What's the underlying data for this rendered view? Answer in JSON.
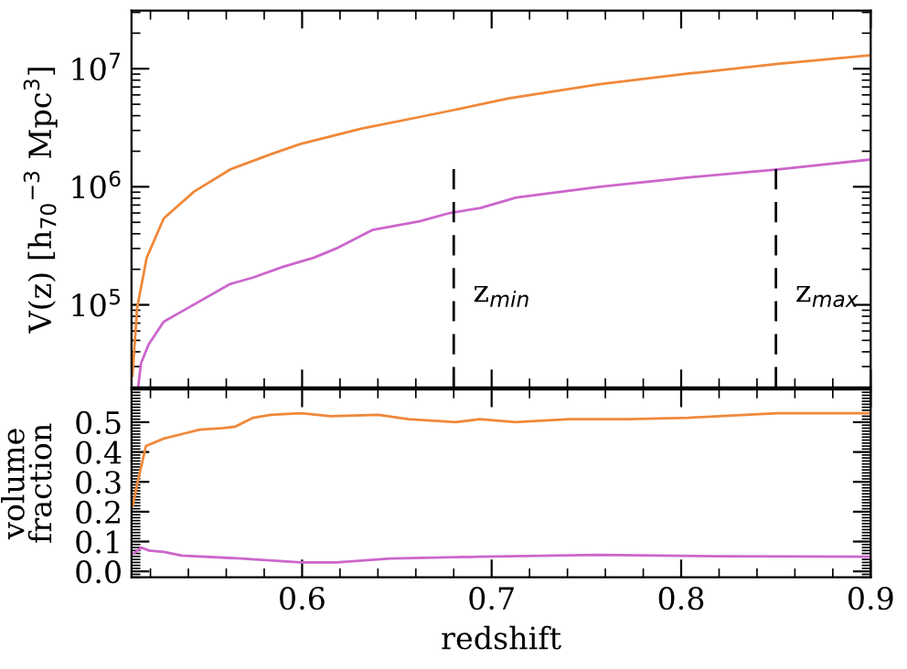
{
  "chart_data": [
    {
      "type": "line",
      "ylabel": "V(z) [h$_{70}$$^{−3}$ Mpc$^{3}$]",
      "log": "y",
      "xlim": [
        0.51,
        0.9
      ],
      "ylim": [
        20000,
        31000000
      ],
      "xticks": [
        0.6,
        0.7,
        0.8,
        0.9
      ],
      "yticks": [
        {
          "value": 100000,
          "label": "10$^{5}$"
        },
        {
          "value": 1000000,
          "label": "10$^{6}$"
        },
        {
          "value": 10000000,
          "label": "10$^{7}$"
        }
      ],
      "tick_labels": "y",
      "grid": false,
      "legend": false,
      "series": [
        {
          "color": "#f0883a",
          "x": [
            0.5105,
            0.513,
            0.518,
            0.527,
            0.543,
            0.562,
            0.584,
            0.599,
            0.631,
            0.662,
            0.678,
            0.709,
            0.757,
            0.804,
            0.851,
            0.9
          ],
          "values": [
            25000,
            95000,
            250000,
            540000,
            910000,
            1400000,
            1900000,
            2300000,
            3100000,
            3900000,
            4400000,
            5600000,
            7400000,
            9100000,
            11000000,
            13000000
          ]
        },
        {
          "color": "#cc66cc",
          "x": [
            0.5135,
            0.515,
            0.519,
            0.527,
            0.536,
            0.562,
            0.574,
            0.59,
            0.606,
            0.618,
            0.637,
            0.662,
            0.678,
            0.694,
            0.713,
            0.757,
            0.804,
            0.851,
            0.9
          ],
          "values": [
            20000,
            32000,
            46000,
            72000,
            87000,
            150000,
            170000,
            210000,
            250000,
            300000,
            430000,
            510000,
            600000,
            660000,
            810000,
            1000000,
            1200000,
            1400000,
            1700000
          ]
        }
      ],
      "ref_lines": [
        {
          "axis": "x",
          "value": 0.68,
          "label": "z$_{min}$",
          "color": "#000000",
          "line_style": "dashed"
        },
        {
          "axis": "x",
          "value": 0.85,
          "label": "z$_{max}$",
          "color": "#000000",
          "line_style": "dashed"
        }
      ]
    },
    {
      "type": "line",
      "xlabel": "redshift",
      "ylabel": "volume\nfraction",
      "xlim": [
        0.51,
        0.9
      ],
      "ylim": [
        -0.02,
        0.61
      ],
      "xticks": [
        0.6,
        0.7,
        0.8,
        0.9
      ],
      "yticks": [
        {
          "value": 0,
          "label": "0.0"
        },
        {
          "value": 0.1,
          "label": "0.1"
        },
        {
          "value": 0.2,
          "label": "0.2"
        },
        {
          "value": 0.3,
          "label": "0.3"
        },
        {
          "value": 0.4,
          "label": "0.4"
        },
        {
          "value": 0.5,
          "label": "0.5"
        }
      ],
      "grid": false,
      "legend": false,
      "series": [
        {
          "color": "#f0883a",
          "x": [
            0.5107,
            0.5129,
            0.5176,
            0.527,
            0.5365,
            0.5459,
            0.5585,
            0.5648,
            0.5742,
            0.5836,
            0.5994,
            0.6151,
            0.6403,
            0.656,
            0.6811,
            0.6937,
            0.7126,
            0.7409,
            0.7723,
            0.8038,
            0.8509,
            0.8997
          ],
          "values": [
            0.22,
            0.29,
            0.42,
            0.445,
            0.46,
            0.475,
            0.48,
            0.485,
            0.515,
            0.525,
            0.53,
            0.52,
            0.525,
            0.51,
            0.5,
            0.51,
            0.5,
            0.51,
            0.51,
            0.515,
            0.53,
            0.53
          ]
        },
        {
          "color": "#cc66cc",
          "x": [
            0.5113,
            0.5151,
            0.5192,
            0.527,
            0.5365,
            0.5679,
            0.5994,
            0.6182,
            0.6465,
            0.6937,
            0.7566,
            0.8195,
            0.8997
          ],
          "values": [
            0.06,
            0.08,
            0.07,
            0.065,
            0.053,
            0.043,
            0.03,
            0.03,
            0.043,
            0.049,
            0.055,
            0.051,
            0.049
          ]
        }
      ]
    }
  ]
}
